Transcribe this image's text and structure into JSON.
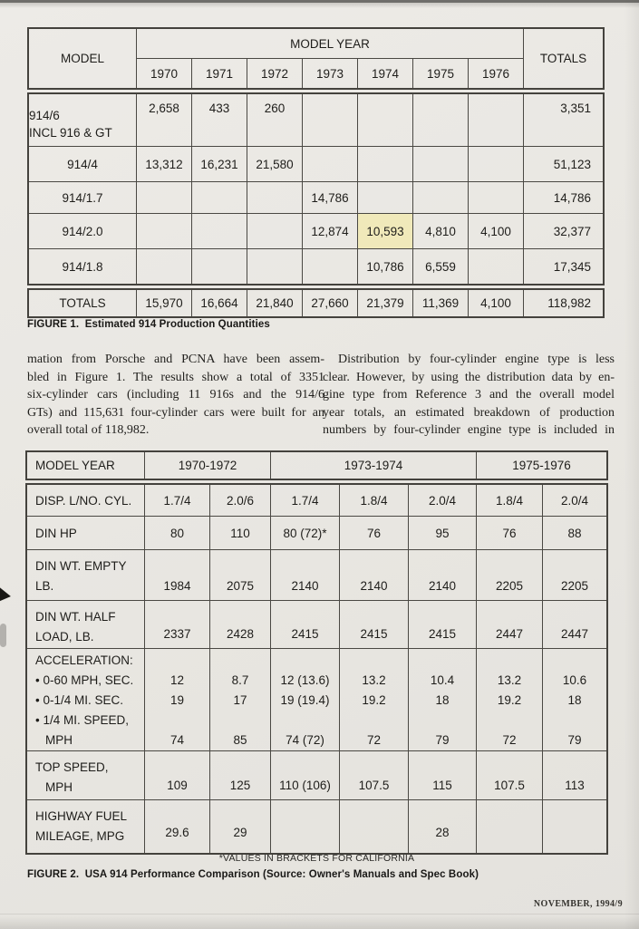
{
  "colors": {
    "highlight": "#f0e9ba",
    "paper": "#e9e7e2",
    "table_line": "#44423d"
  },
  "figure1": {
    "caption": "FIGURE 1.  Estimated 914 Production Quantities",
    "header": {
      "model": "MODEL",
      "model_year": "MODEL YEAR",
      "totals": "TOTALS"
    },
    "years": [
      "1970",
      "1971",
      "1972",
      "1973",
      "1974",
      "1975",
      "1976"
    ],
    "rows": [
      {
        "label": "914/6",
        "label2": "INCL 916 & GT",
        "v": [
          "2,658",
          "433",
          "260",
          "",
          "",
          "",
          ""
        ],
        "total": "3,351"
      },
      {
        "label": "914/4",
        "label2": "",
        "v": [
          "13,312",
          "16,231",
          "21,580",
          "",
          "",
          "",
          ""
        ],
        "total": "51,123"
      },
      {
        "label": "914/1.7",
        "label2": "",
        "v": [
          "",
          "",
          "",
          "14,786",
          "",
          "",
          ""
        ],
        "total": "14,786"
      },
      {
        "label": "914/2.0",
        "label2": "",
        "v": [
          "",
          "",
          "",
          "12,874",
          "10,593",
          "4,810",
          "4,100"
        ],
        "total": "32,377"
      },
      {
        "label": "914/1.8",
        "label2": "",
        "v": [
          "",
          "",
          "",
          "",
          "10,786",
          "6,559",
          ""
        ],
        "total": "17,345"
      }
    ],
    "totals": {
      "label": "TOTALS",
      "v": [
        "15,970",
        "16,664",
        "21,840",
        "27,660",
        "21,379",
        "11,369",
        "4,100"
      ],
      "total": "118,982"
    }
  },
  "article": {
    "left_lines": [
      "mation from Porsche and PCNA have been assem-",
      "bled in Figure 1. The results show a total of 3351",
      "six-cylinder cars (including 11 916s and the 914/6",
      "GTs) and 115,631 four-cylinder cars were built for an",
      "overall total of 118,982."
    ],
    "right_lines": [
      "Distribution by four-cylinder engine type is less",
      "clear. However, by using the distribution data by en-",
      "gine type from Reference 3 and the overall model",
      "year totals, an estimated breakdown of production",
      "numbers by four-cylinder engine type is included in"
    ]
  },
  "figure2": {
    "caption": "FIGURE 2.  USA 914 Performance Comparison (Source: Owner's Manuals and Spec Book)",
    "footnote": "*VALUES IN BRACKETS FOR CALIFORNIA",
    "header": {
      "label": "MODEL YEAR",
      "g1": "1970-1972",
      "g2": "1973-1974",
      "g3": "1975-1976"
    },
    "disp": {
      "label": "DISP. L/NO. CYL.",
      "v": [
        "1.7/4",
        "2.0/6",
        "1.7/4",
        "1.8/4",
        "2.0/4",
        "1.8/4",
        "2.0/4"
      ]
    },
    "hp": {
      "label": "DIN HP",
      "v": [
        "80",
        "110",
        "80 (72)*",
        "76",
        "95",
        "76",
        "88"
      ]
    },
    "wt_empty": {
      "l1": "DIN WT. EMPTY",
      "l2": "LB.",
      "v": [
        "1984",
        "2075",
        "2140",
        "2140",
        "2140",
        "2205",
        "2205"
      ]
    },
    "wt_half": {
      "l1": "DIN WT. HALF",
      "l2": "LOAD, LB.",
      "v": [
        "2337",
        "2428",
        "2415",
        "2415",
        "2415",
        "2447",
        "2447"
      ]
    },
    "accel": {
      "heading": "ACCELERATION:",
      "s1_label": "• 0-60 MPH, SEC.",
      "s1": [
        "12",
        "8.7",
        "12 (13.6)",
        "13.2",
        "10.4",
        "13.2",
        "10.6"
      ],
      "s2_label": "• 0-1/4 MI. SEC.",
      "s2": [
        "19",
        "17",
        "19 (19.4)",
        "19.2",
        "18",
        "19.2",
        "18"
      ],
      "s3_label": "• 1/4 MI. SPEED,",
      "s3_label2": "MPH",
      "s3": [
        "74",
        "85",
        "74 (72)",
        "72",
        "79",
        "72",
        "79"
      ]
    },
    "top_speed": {
      "l1": "TOP SPEED,",
      "l2": "MPH",
      "v": [
        "109",
        "125",
        "110 (106)",
        "107.5",
        "115",
        "107.5",
        "113"
      ]
    },
    "fuel": {
      "l1": "HIGHWAY FUEL",
      "l2": "MILEAGE, MPG",
      "v": [
        "29.6",
        "29",
        "",
        "",
        "28",
        "",
        ""
      ]
    }
  },
  "footer": {
    "text": "NOVEMBER, 1994/9"
  }
}
